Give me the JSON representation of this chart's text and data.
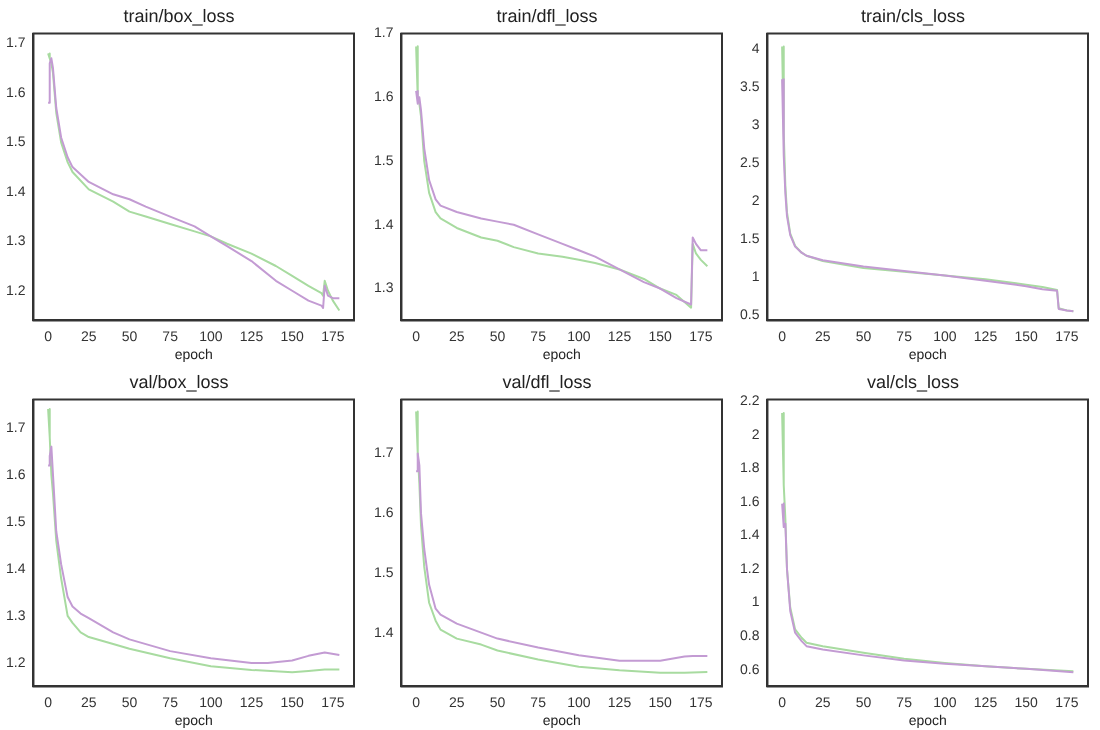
{
  "chart_data": [
    {
      "type": "line",
      "title": "train/box_loss",
      "xlabel": "epoch",
      "xlim": [
        -9,
        188
      ],
      "xticks": [
        0,
        25,
        50,
        75,
        100,
        125,
        150,
        175
      ],
      "ylim": [
        1.14,
        1.72
      ],
      "yticks": [
        1.2,
        1.3,
        1.4,
        1.5,
        1.6,
        1.7
      ],
      "series": [
        {
          "color": "#c39bd3",
          "x": [
            0,
            1,
            2,
            3,
            5,
            8,
            12,
            15,
            25,
            40,
            50,
            60,
            75,
            90,
            100,
            110,
            125,
            140,
            150,
            160,
            168,
            169,
            170,
            172,
            175,
            179
          ],
          "values": [
            1.58,
            1.66,
            1.67,
            1.65,
            1.57,
            1.51,
            1.47,
            1.45,
            1.42,
            1.395,
            1.385,
            1.37,
            1.35,
            1.33,
            1.31,
            1.29,
            1.26,
            1.22,
            1.2,
            1.18,
            1.17,
            1.165,
            1.21,
            1.19,
            1.185,
            1.185
          ]
        },
        {
          "color": "#a8dba0",
          "x": [
            0,
            1,
            2,
            3,
            5,
            8,
            12,
            15,
            25,
            40,
            50,
            60,
            75,
            90,
            100,
            110,
            125,
            140,
            150,
            160,
            168,
            169,
            170,
            172,
            175,
            179
          ],
          "values": [
            1.68,
            1.67,
            1.66,
            1.64,
            1.56,
            1.5,
            1.46,
            1.44,
            1.405,
            1.38,
            1.36,
            1.35,
            1.335,
            1.32,
            1.31,
            1.295,
            1.275,
            1.25,
            1.23,
            1.21,
            1.195,
            1.19,
            1.22,
            1.2,
            1.18,
            1.16
          ]
        }
      ]
    },
    {
      "type": "line",
      "title": "train/dfl_loss",
      "xlabel": "epoch",
      "xlim": [
        -9,
        188
      ],
      "xticks": [
        0,
        25,
        50,
        75,
        100,
        125,
        150,
        175
      ],
      "ylim": [
        1.25,
        1.7
      ],
      "yticks": [
        1.3,
        1.4,
        1.5,
        1.6,
        1.7
      ],
      "series": [
        {
          "color": "#c39bd3",
          "x": [
            0,
            1,
            2,
            3,
            5,
            8,
            12,
            15,
            25,
            40,
            50,
            60,
            75,
            90,
            100,
            110,
            125,
            140,
            150,
            160,
            169,
            170,
            172,
            175,
            179
          ],
          "values": [
            1.61,
            1.59,
            1.6,
            1.58,
            1.52,
            1.47,
            1.44,
            1.43,
            1.42,
            1.41,
            1.405,
            1.4,
            1.385,
            1.37,
            1.36,
            1.35,
            1.33,
            1.31,
            1.3,
            1.285,
            1.275,
            1.38,
            1.37,
            1.36,
            1.36
          ]
        },
        {
          "color": "#a8dba0",
          "x": [
            0,
            1,
            2,
            3,
            5,
            8,
            12,
            15,
            25,
            40,
            50,
            60,
            75,
            90,
            100,
            110,
            125,
            140,
            150,
            160,
            169,
            170,
            172,
            175,
            179
          ],
          "values": [
            1.68,
            1.6,
            1.59,
            1.57,
            1.5,
            1.45,
            1.42,
            1.41,
            1.395,
            1.38,
            1.375,
            1.365,
            1.355,
            1.35,
            1.345,
            1.34,
            1.33,
            1.315,
            1.3,
            1.29,
            1.27,
            1.37,
            1.355,
            1.345,
            1.335
          ]
        }
      ]
    },
    {
      "type": "line",
      "title": "train/cls_loss",
      "xlabel": "epoch",
      "xlim": [
        -9,
        188
      ],
      "xticks": [
        0,
        25,
        50,
        75,
        100,
        125,
        150,
        175
      ],
      "ylim": [
        0.43,
        4.2
      ],
      "yticks": [
        0.5,
        1.0,
        1.5,
        2.0,
        2.5,
        3.0,
        3.5,
        4.0
      ],
      "series": [
        {
          "color": "#c39bd3",
          "x": [
            0,
            1,
            2,
            3,
            5,
            8,
            12,
            15,
            25,
            50,
            75,
            100,
            125,
            150,
            160,
            169,
            170,
            175,
            179
          ],
          "values": [
            3.6,
            2.6,
            2.1,
            1.8,
            1.55,
            1.4,
            1.32,
            1.28,
            1.22,
            1.14,
            1.08,
            1.02,
            0.95,
            0.88,
            0.84,
            0.82,
            0.58,
            0.56,
            0.55
          ]
        },
        {
          "color": "#a8dba0",
          "x": [
            0,
            1,
            2,
            3,
            5,
            8,
            12,
            15,
            25,
            50,
            75,
            100,
            125,
            150,
            160,
            169,
            170,
            175,
            179
          ],
          "values": [
            4.03,
            2.9,
            2.2,
            1.85,
            1.57,
            1.41,
            1.32,
            1.28,
            1.21,
            1.12,
            1.07,
            1.02,
            0.97,
            0.9,
            0.87,
            0.83,
            0.59,
            0.56,
            0.55
          ]
        }
      ]
    },
    {
      "type": "line",
      "title": "val/box_loss",
      "xlabel": "epoch",
      "xlim": [
        -9,
        188
      ],
      "xticks": [
        0,
        25,
        50,
        75,
        100,
        125,
        150,
        175
      ],
      "ylim": [
        1.15,
        1.76
      ],
      "yticks": [
        1.2,
        1.3,
        1.4,
        1.5,
        1.6,
        1.7
      ],
      "series": [
        {
          "color": "#c39bd3",
          "x": [
            0,
            1,
            2,
            3,
            5,
            8,
            12,
            15,
            20,
            25,
            40,
            50,
            75,
            100,
            125,
            135,
            150,
            160,
            170,
            179
          ],
          "values": [
            1.62,
            1.64,
            1.66,
            1.6,
            1.48,
            1.41,
            1.34,
            1.32,
            1.305,
            1.295,
            1.265,
            1.25,
            1.225,
            1.21,
            1.2,
            1.2,
            1.205,
            1.215,
            1.222,
            1.217
          ]
        },
        {
          "color": "#a8dba0",
          "x": [
            0,
            1,
            2,
            3,
            5,
            8,
            12,
            15,
            20,
            25,
            40,
            50,
            75,
            100,
            125,
            150,
            160,
            170,
            179
          ],
          "values": [
            1.74,
            1.68,
            1.6,
            1.56,
            1.46,
            1.38,
            1.3,
            1.285,
            1.265,
            1.255,
            1.24,
            1.23,
            1.21,
            1.193,
            1.185,
            1.18,
            1.183,
            1.186,
            1.186
          ]
        }
      ]
    },
    {
      "type": "line",
      "title": "val/dfl_loss",
      "xlabel": "epoch",
      "xlim": [
        -9,
        188
      ],
      "xticks": [
        0,
        25,
        50,
        75,
        100,
        125,
        150,
        175
      ],
      "ylim": [
        1.31,
        1.79
      ],
      "yticks": [
        1.4,
        1.5,
        1.6,
        1.7
      ],
      "series": [
        {
          "color": "#c39bd3",
          "x": [
            0,
            1,
            2,
            3,
            5,
            8,
            12,
            15,
            25,
            40,
            50,
            75,
            100,
            125,
            150,
            165,
            170,
            179
          ],
          "values": [
            1.67,
            1.7,
            1.68,
            1.6,
            1.54,
            1.48,
            1.44,
            1.43,
            1.415,
            1.4,
            1.39,
            1.375,
            1.362,
            1.353,
            1.353,
            1.36,
            1.361,
            1.361
          ]
        },
        {
          "color": "#a8dba0",
          "x": [
            0,
            1,
            2,
            3,
            5,
            8,
            12,
            15,
            25,
            40,
            50,
            75,
            100,
            125,
            150,
            165,
            179
          ],
          "values": [
            1.77,
            1.7,
            1.65,
            1.58,
            1.51,
            1.45,
            1.42,
            1.405,
            1.39,
            1.38,
            1.37,
            1.355,
            1.343,
            1.337,
            1.333,
            1.333,
            1.334
          ]
        }
      ]
    },
    {
      "type": "line",
      "title": "val/cls_loss",
      "xlabel": "epoch",
      "xlim": [
        -9,
        188
      ],
      "xticks": [
        0,
        25,
        50,
        75,
        100,
        125,
        150,
        175
      ],
      "ylim": [
        0.5,
        2.21
      ],
      "yticks": [
        0.6,
        0.8,
        1.0,
        1.2,
        1.4,
        1.6,
        1.8,
        2.0,
        2.2
      ],
      "series": [
        {
          "color": "#c39bd3",
          "x": [
            0,
            1,
            2,
            3,
            5,
            8,
            12,
            15,
            25,
            50,
            75,
            100,
            125,
            150,
            179
          ],
          "values": [
            1.59,
            1.45,
            1.47,
            1.2,
            0.95,
            0.82,
            0.77,
            0.74,
            0.72,
            0.685,
            0.655,
            0.635,
            0.62,
            0.605,
            0.585
          ]
        },
        {
          "color": "#a8dba0",
          "x": [
            0,
            1,
            2,
            3,
            5,
            8,
            12,
            15,
            25,
            50,
            75,
            100,
            125,
            150,
            179
          ],
          "values": [
            2.13,
            1.7,
            1.5,
            1.2,
            0.97,
            0.84,
            0.79,
            0.76,
            0.74,
            0.7,
            0.665,
            0.64,
            0.62,
            0.605,
            0.59
          ]
        }
      ]
    }
  ]
}
